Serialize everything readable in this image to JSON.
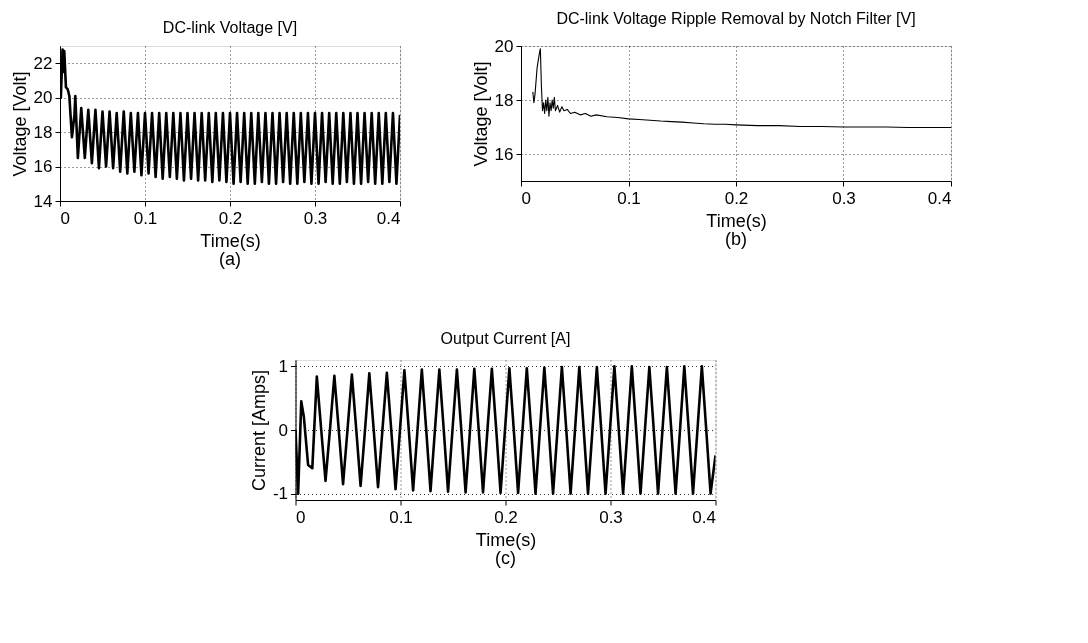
{
  "chart_data": [
    {
      "type": "line",
      "title": "DC-link Voltage [V]",
      "xlabel": "Time(s)",
      "ylabel": "Voltage [Volt]",
      "annotations": [
        "(a)"
      ],
      "xlim": [
        0,
        0.4
      ],
      "ylim": [
        14,
        23
      ],
      "xticks": [
        0,
        0.1,
        0.2,
        0.3,
        0.4
      ],
      "yticks": [
        14,
        16,
        18,
        20,
        22
      ],
      "grid": true,
      "line_style": "solid",
      "x": [
        0,
        0.001,
        0.003,
        0.004,
        0.005,
        0.007,
        0.009,
        0.011,
        0.014,
        0.017,
        0.018,
        0.021,
        0.025,
        0.0292,
        0.0333,
        0.0375,
        0.0417,
        0.0458,
        0.05,
        0.0542,
        0.0583,
        0.0625,
        0.0667,
        0.0708,
        0.075,
        0.0792,
        0.0833,
        0.0875,
        0.0917,
        0.0958,
        0.1,
        0.1042,
        0.1083,
        0.1125,
        0.1167,
        0.1208,
        0.125,
        0.1292,
        0.1333,
        0.1375,
        0.1417,
        0.1458,
        0.15,
        0.1542,
        0.1583,
        0.1625,
        0.1667,
        0.1708,
        0.175,
        0.1792,
        0.1833,
        0.1875,
        0.1917,
        0.1958,
        0.2,
        0.2042,
        0.2083,
        0.2125,
        0.2167,
        0.2208,
        0.225,
        0.2292,
        0.2333,
        0.2375,
        0.2417,
        0.2458,
        0.25,
        0.2542,
        0.2583,
        0.2625,
        0.2667,
        0.2708,
        0.275,
        0.2792,
        0.2833,
        0.2875,
        0.2917,
        0.2958,
        0.3,
        0.3042,
        0.3083,
        0.3125,
        0.3167,
        0.3208,
        0.325,
        0.3292,
        0.3333,
        0.3375,
        0.3417,
        0.3458,
        0.35,
        0.3542,
        0.3583,
        0.3625,
        0.3667,
        0.3708,
        0.375,
        0.3792,
        0.3833,
        0.3875,
        0.3917,
        0.3958,
        0.4
      ],
      "series": [
        {
          "color": "#000000",
          "values": [
            20.2,
            20.0,
            22.8,
            21.5,
            22.7,
            20.6,
            20.5,
            20.1,
            17.7,
            19.0,
            20.1,
            16.5,
            19.4,
            16.5,
            19.3,
            16.2,
            19.3,
            15.9,
            19.2,
            16.0,
            19.2,
            15.9,
            19.1,
            15.7,
            19.2,
            15.6,
            19.1,
            15.7,
            19.1,
            15.5,
            19.1,
            15.6,
            19.1,
            15.4,
            19.1,
            15.3,
            19.1,
            15.4,
            19.1,
            15.3,
            19.1,
            15.2,
            19.1,
            15.3,
            19.1,
            15.2,
            19.1,
            15.2,
            19.1,
            15.1,
            19.1,
            15.2,
            19.1,
            15.1,
            19.1,
            15.0,
            19.1,
            15.1,
            19.1,
            15.0,
            19.1,
            15.0,
            19.1,
            15.1,
            19.1,
            15.0,
            19.1,
            15.0,
            19.1,
            15.1,
            19.1,
            15.0,
            19.1,
            15.0,
            19.1,
            15.1,
            19.1,
            15.0,
            19.1,
            15.0,
            19.1,
            15.1,
            19.1,
            15.0,
            19.1,
            15.0,
            19.1,
            15.1,
            19.1,
            15.0,
            19.1,
            15.0,
            19.1,
            15.1,
            19.1,
            15.0,
            19.1,
            15.0,
            19.1,
            15.1,
            19.1,
            15.0,
            19.0
          ]
        }
      ]
    },
    {
      "type": "line",
      "title": "DC-link Voltage Ripple Removal by Notch Filter [V]",
      "xlabel": "Time(s)",
      "ylabel": "Voltage [Volt]",
      "annotations": [
        "(b)"
      ],
      "xlim": [
        0,
        0.4
      ],
      "ylim": [
        15,
        20
      ],
      "xticks": [
        0,
        0.1,
        0.2,
        0.3,
        0.4
      ],
      "yticks": [
        16,
        18,
        20
      ],
      "grid": true,
      "line_style": "solid",
      "x": [
        0.011,
        0.012,
        0.013,
        0.015,
        0.017,
        0.018,
        0.019,
        0.02,
        0.021,
        0.022,
        0.023,
        0.024,
        0.025,
        0.026,
        0.027,
        0.028,
        0.029,
        0.03,
        0.031,
        0.032,
        0.034,
        0.036,
        0.038,
        0.04,
        0.043,
        0.046,
        0.05,
        0.055,
        0.06,
        0.065,
        0.07,
        0.08,
        0.09,
        0.1,
        0.11,
        0.12,
        0.13,
        0.14,
        0.15,
        0.16,
        0.17,
        0.18,
        0.19,
        0.2,
        0.22,
        0.24,
        0.26,
        0.28,
        0.3,
        0.32,
        0.34,
        0.36,
        0.38,
        0.4
      ],
      "series": [
        {
          "color": "#000000",
          "values": [
            18.3,
            17.9,
            18.2,
            19.2,
            19.7,
            19.9,
            18.5,
            17.6,
            17.9,
            17.5,
            18.0,
            17.6,
            18.1,
            17.4,
            17.9,
            17.6,
            18.0,
            17.7,
            18.1,
            17.6,
            17.8,
            17.55,
            17.75,
            17.6,
            17.65,
            17.5,
            17.55,
            17.45,
            17.5,
            17.4,
            17.45,
            17.38,
            17.35,
            17.3,
            17.28,
            17.25,
            17.22,
            17.2,
            17.18,
            17.15,
            17.12,
            17.1,
            17.1,
            17.08,
            17.05,
            17.05,
            17.02,
            17.02,
            17.0,
            17.0,
            17.0,
            16.98,
            16.98,
            16.98
          ]
        }
      ]
    },
    {
      "type": "line",
      "title": "Output Current [A]",
      "xlabel": "Time(s)",
      "ylabel": "Current [Amps]",
      "annotations": [
        "(c)"
      ],
      "xlim": [
        0,
        0.4
      ],
      "ylim": [
        -1.1,
        1.1
      ],
      "xticks": [
        0,
        0.1,
        0.2,
        0.3,
        0.4
      ],
      "yticks": [
        -1,
        0,
        1
      ],
      "grid": true,
      "line_style": "solid",
      "x": [
        0,
        0.0025,
        0.0055,
        0.008,
        0.012,
        0.016,
        0.0203,
        0.0245,
        0.0286,
        0.0328,
        0.037,
        0.0412,
        0.0453,
        0.0495,
        0.0537,
        0.0579,
        0.062,
        0.0662,
        0.0703,
        0.0745,
        0.0786,
        0.0828,
        0.087,
        0.0912,
        0.0953,
        0.0995,
        0.1037,
        0.1079,
        0.112,
        0.1162,
        0.1203,
        0.1245,
        0.1286,
        0.1328,
        0.137,
        0.1412,
        0.1453,
        0.1495,
        0.1537,
        0.1579,
        0.162,
        0.1662,
        0.1703,
        0.1745,
        0.1786,
        0.1828,
        0.187,
        0.1912,
        0.1953,
        0.1995,
        0.2037,
        0.2079,
        0.212,
        0.2162,
        0.2203,
        0.2245,
        0.2286,
        0.2328,
        0.237,
        0.2412,
        0.2453,
        0.2495,
        0.2537,
        0.2579,
        0.262,
        0.2662,
        0.2703,
        0.2745,
        0.2786,
        0.2828,
        0.287,
        0.2912,
        0.2953,
        0.2995,
        0.3037,
        0.3079,
        0.312,
        0.3162,
        0.3203,
        0.3245,
        0.3286,
        0.3328,
        0.337,
        0.3412,
        0.3453,
        0.3495,
        0.3537,
        0.3579,
        0.362,
        0.3662,
        0.3703,
        0.3745,
        0.3786,
        0.3828,
        0.387,
        0.3912,
        0.3953,
        0.4
      ],
      "series": [
        {
          "color": "#000000",
          "values": [
            0,
            -1,
            0.45,
            0.2,
            -0.55,
            -0.6,
            0.84,
            0,
            -0.8,
            0,
            0.85,
            0,
            -0.85,
            0,
            0.87,
            0,
            -0.88,
            0,
            0.89,
            0,
            -0.9,
            0,
            0.9,
            0,
            -0.93,
            0,
            0.94,
            0,
            -0.95,
            0,
            0.95,
            0,
            -0.96,
            0,
            0.95,
            0,
            -0.97,
            0,
            0.95,
            0,
            -0.98,
            0,
            0.96,
            0,
            -0.98,
            0,
            0.96,
            0,
            -0.99,
            0,
            0.97,
            0,
            -0.99,
            0,
            0.97,
            0,
            -1,
            0,
            0.98,
            0,
            -1,
            0,
            0.99,
            0,
            -1,
            0,
            0.99,
            0,
            -1,
            0,
            0.99,
            0,
            -1,
            0,
            1,
            0,
            -1,
            0,
            1,
            0,
            -1,
            0,
            0.99,
            0,
            -1,
            0,
            0.99,
            0,
            -1,
            0,
            1,
            0,
            -1,
            0,
            1,
            0,
            -1,
            -0.4
          ]
        }
      ]
    }
  ]
}
